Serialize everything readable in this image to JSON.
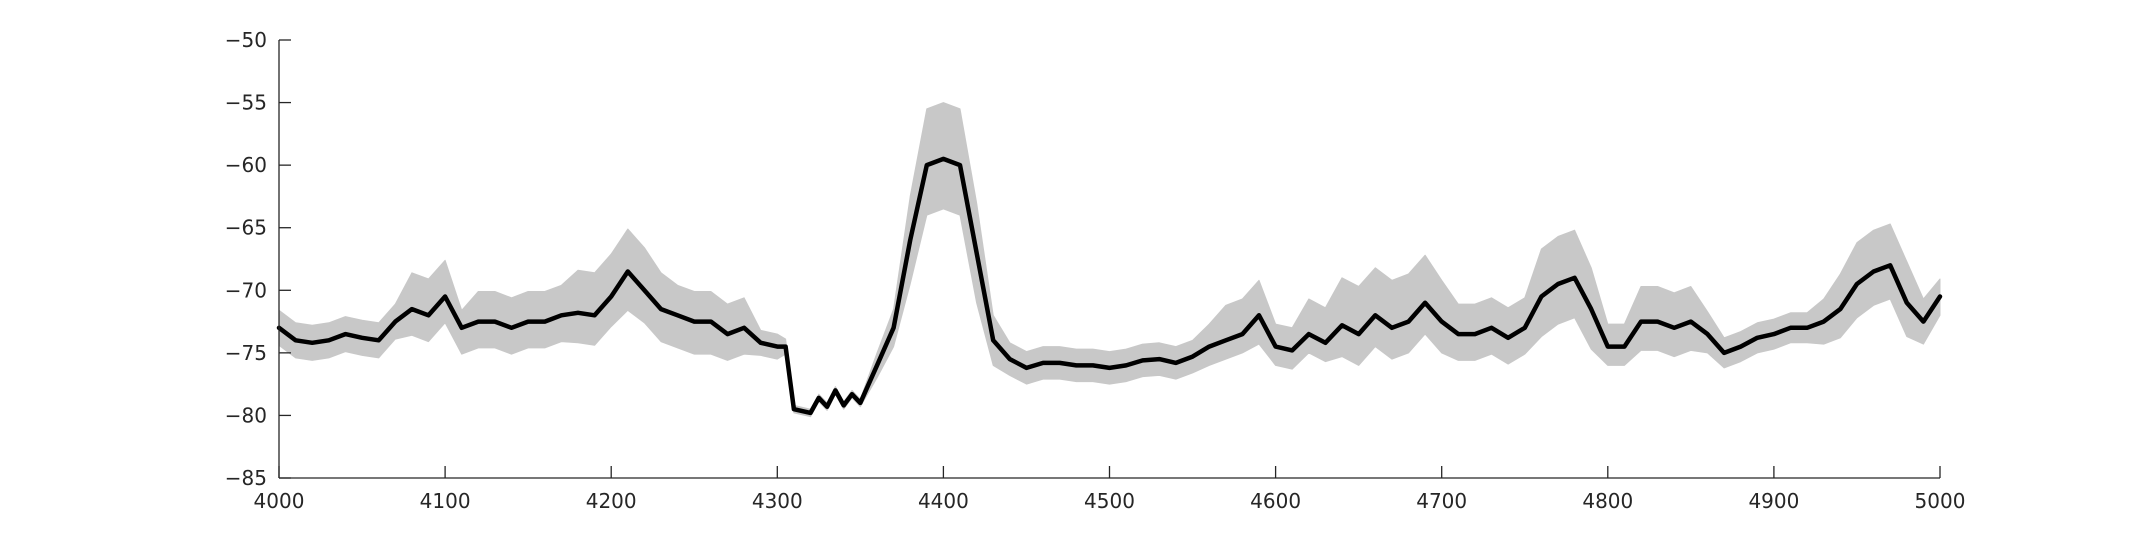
{
  "chart_data": {
    "type": "line",
    "title": "",
    "xlabel": "",
    "ylabel": "",
    "xlim": [
      4000,
      5000
    ],
    "ylim": [
      -85,
      -50
    ],
    "xticks": [
      4000,
      4100,
      4200,
      4300,
      4400,
      4500,
      4600,
      4700,
      4800,
      4900,
      5000
    ],
    "yticks": [
      -50,
      -55,
      -60,
      -65,
      -70,
      -75,
      -80,
      -85
    ],
    "grid": false,
    "legend": "none",
    "colors": {
      "mean": "#000000",
      "band": "#c8c8c8",
      "axis": "#262626"
    },
    "series": [
      {
        "role": "mean",
        "x": [
          4000,
          4010,
          4020,
          4030,
          4040,
          4050,
          4060,
          4070,
          4080,
          4090,
          4100,
          4110,
          4120,
          4130,
          4140,
          4150,
          4160,
          4170,
          4180,
          4190,
          4200,
          4210,
          4220,
          4230,
          4240,
          4250,
          4260,
          4270,
          4280,
          4290,
          4300,
          4305,
          4310,
          4320,
          4325,
          4330,
          4335,
          4340,
          4345,
          4350,
          4360,
          4370,
          4380,
          4390,
          4400,
          4410,
          4420,
          4430,
          4440,
          4450,
          4460,
          4470,
          4480,
          4490,
          4500,
          4510,
          4520,
          4530,
          4540,
          4550,
          4560,
          4570,
          4580,
          4590,
          4600,
          4610,
          4620,
          4630,
          4640,
          4650,
          4660,
          4670,
          4680,
          4690,
          4700,
          4710,
          4720,
          4730,
          4740,
          4750,
          4760,
          4770,
          4780,
          4790,
          4800,
          4810,
          4820,
          4830,
          4840,
          4850,
          4860,
          4870,
          4880,
          4890,
          4900,
          4910,
          4920,
          4930,
          4940,
          4950,
          4960,
          4970,
          4980,
          4990,
          5000
        ],
        "y": [
          -73,
          -74,
          -74.2,
          -74,
          -73.5,
          -73.8,
          -74,
          -72.5,
          -71.5,
          -72,
          -70.5,
          -73,
          -72.5,
          -72.5,
          -73,
          -72.5,
          -72.5,
          -72,
          -71.8,
          -72,
          -70.5,
          -68.5,
          -70,
          -71.5,
          -72,
          -72.5,
          -72.5,
          -73.5,
          -73,
          -74.2,
          -74.5,
          -74.5,
          -79.5,
          -79.8,
          -78.6,
          -79.3,
          -78,
          -79.2,
          -78.3,
          -79,
          -76,
          -73,
          -66,
          -60,
          -59.5,
          -60,
          -67,
          -74,
          -75.5,
          -76.2,
          -75.8,
          -75.8,
          -76,
          -76,
          -76.2,
          -76,
          -75.6,
          -75.5,
          -75.8,
          -75.3,
          -74.5,
          -74,
          -73.5,
          -72,
          -74.5,
          -74.8,
          -73.5,
          -74.2,
          -72.8,
          -73.5,
          -72,
          -73,
          -72.5,
          -71,
          -72.5,
          -73.5,
          -73.5,
          -73,
          -73.8,
          -73,
          -70.5,
          -69.5,
          -69,
          -71.5,
          -74.5,
          -74.5,
          -72.5,
          -72.5,
          -73,
          -72.5,
          -73.5,
          -75,
          -74.5,
          -73.8,
          -73.5,
          -73,
          -73,
          -72.5,
          -71.5,
          -69.5,
          -68.5,
          -68,
          -71,
          -72.5,
          -70.5
        ]
      },
      {
        "role": "band",
        "upper": [
          -71.6,
          -72.6,
          -72.8,
          -72.6,
          -72.1,
          -72.4,
          -72.6,
          -71.1,
          -68.6,
          -69.1,
          -67.6,
          -71.6,
          -70.1,
          -70.1,
          -70.6,
          -70.1,
          -70.1,
          -69.6,
          -68.4,
          -68.6,
          -67.1,
          -65.1,
          -66.6,
          -68.6,
          -69.6,
          -70.1,
          -70.1,
          -71.1,
          -70.6,
          -73.2,
          -73.5,
          -73.9,
          -79.2,
          -79.5,
          -78.3,
          -79,
          -77.7,
          -78.9,
          -78,
          -78.7,
          -75,
          -71.5,
          -62.5,
          -55.5,
          -55,
          -55.5,
          -63,
          -72,
          -74.2,
          -74.9,
          -74.5,
          -74.5,
          -74.7,
          -74.7,
          -74.9,
          -74.7,
          -74.3,
          -74.2,
          -74.5,
          -74,
          -72.7,
          -71.2,
          -70.7,
          -69.2,
          -72.7,
          -73,
          -70.7,
          -71.4,
          -69,
          -69.7,
          -68.2,
          -69.2,
          -68.7,
          -67.2,
          -69.2,
          -71.1,
          -71.1,
          -70.6,
          -71.4,
          -70.6,
          -66.7,
          -65.7,
          -65.2,
          -68.2,
          -72.7,
          -72.7,
          -69.7,
          -69.7,
          -70.2,
          -69.7,
          -71.7,
          -73.8,
          -73.3,
          -72.6,
          -72.3,
          -71.8,
          -71.8,
          -70.7,
          -68.7,
          -66.2,
          -65.2,
          -64.7,
          -67.7,
          -70.7,
          -69.1
        ],
        "lower": [
          -74.4,
          -75.4,
          -75.6,
          -75.4,
          -74.9,
          -75.2,
          -75.4,
          -73.9,
          -73.6,
          -74.1,
          -72.6,
          -75.1,
          -74.6,
          -74.6,
          -75.1,
          -74.6,
          -74.6,
          -74.1,
          -74.2,
          -74.4,
          -72.9,
          -71.6,
          -72.6,
          -74.1,
          -74.6,
          -75.1,
          -75.1,
          -75.6,
          -75.1,
          -75.2,
          -75.5,
          -75.1,
          -79.8,
          -80.1,
          -78.9,
          -79.6,
          -78.3,
          -79.5,
          -78.6,
          -79.3,
          -77,
          -74.5,
          -69.5,
          -64,
          -63.5,
          -64,
          -71,
          -76,
          -76.8,
          -77.5,
          -77.1,
          -77.1,
          -77.3,
          -77.3,
          -77.5,
          -77.3,
          -76.9,
          -76.8,
          -77.1,
          -76.6,
          -76,
          -75.5,
          -75,
          -74.3,
          -76,
          -76.3,
          -75,
          -75.7,
          -75.3,
          -76,
          -74.5,
          -75.5,
          -75,
          -73.5,
          -75,
          -75.6,
          -75.6,
          -75.1,
          -75.9,
          -75.1,
          -73.7,
          -72.7,
          -72.2,
          -74.7,
          -76,
          -76,
          -74.8,
          -74.8,
          -75.3,
          -74.8,
          -75,
          -76.2,
          -75.7,
          -75,
          -74.7,
          -74.2,
          -74.2,
          -74.3,
          -73.8,
          -72.2,
          -71.2,
          -70.7,
          -73.7,
          -74.3,
          -72
        ]
      }
    ]
  }
}
